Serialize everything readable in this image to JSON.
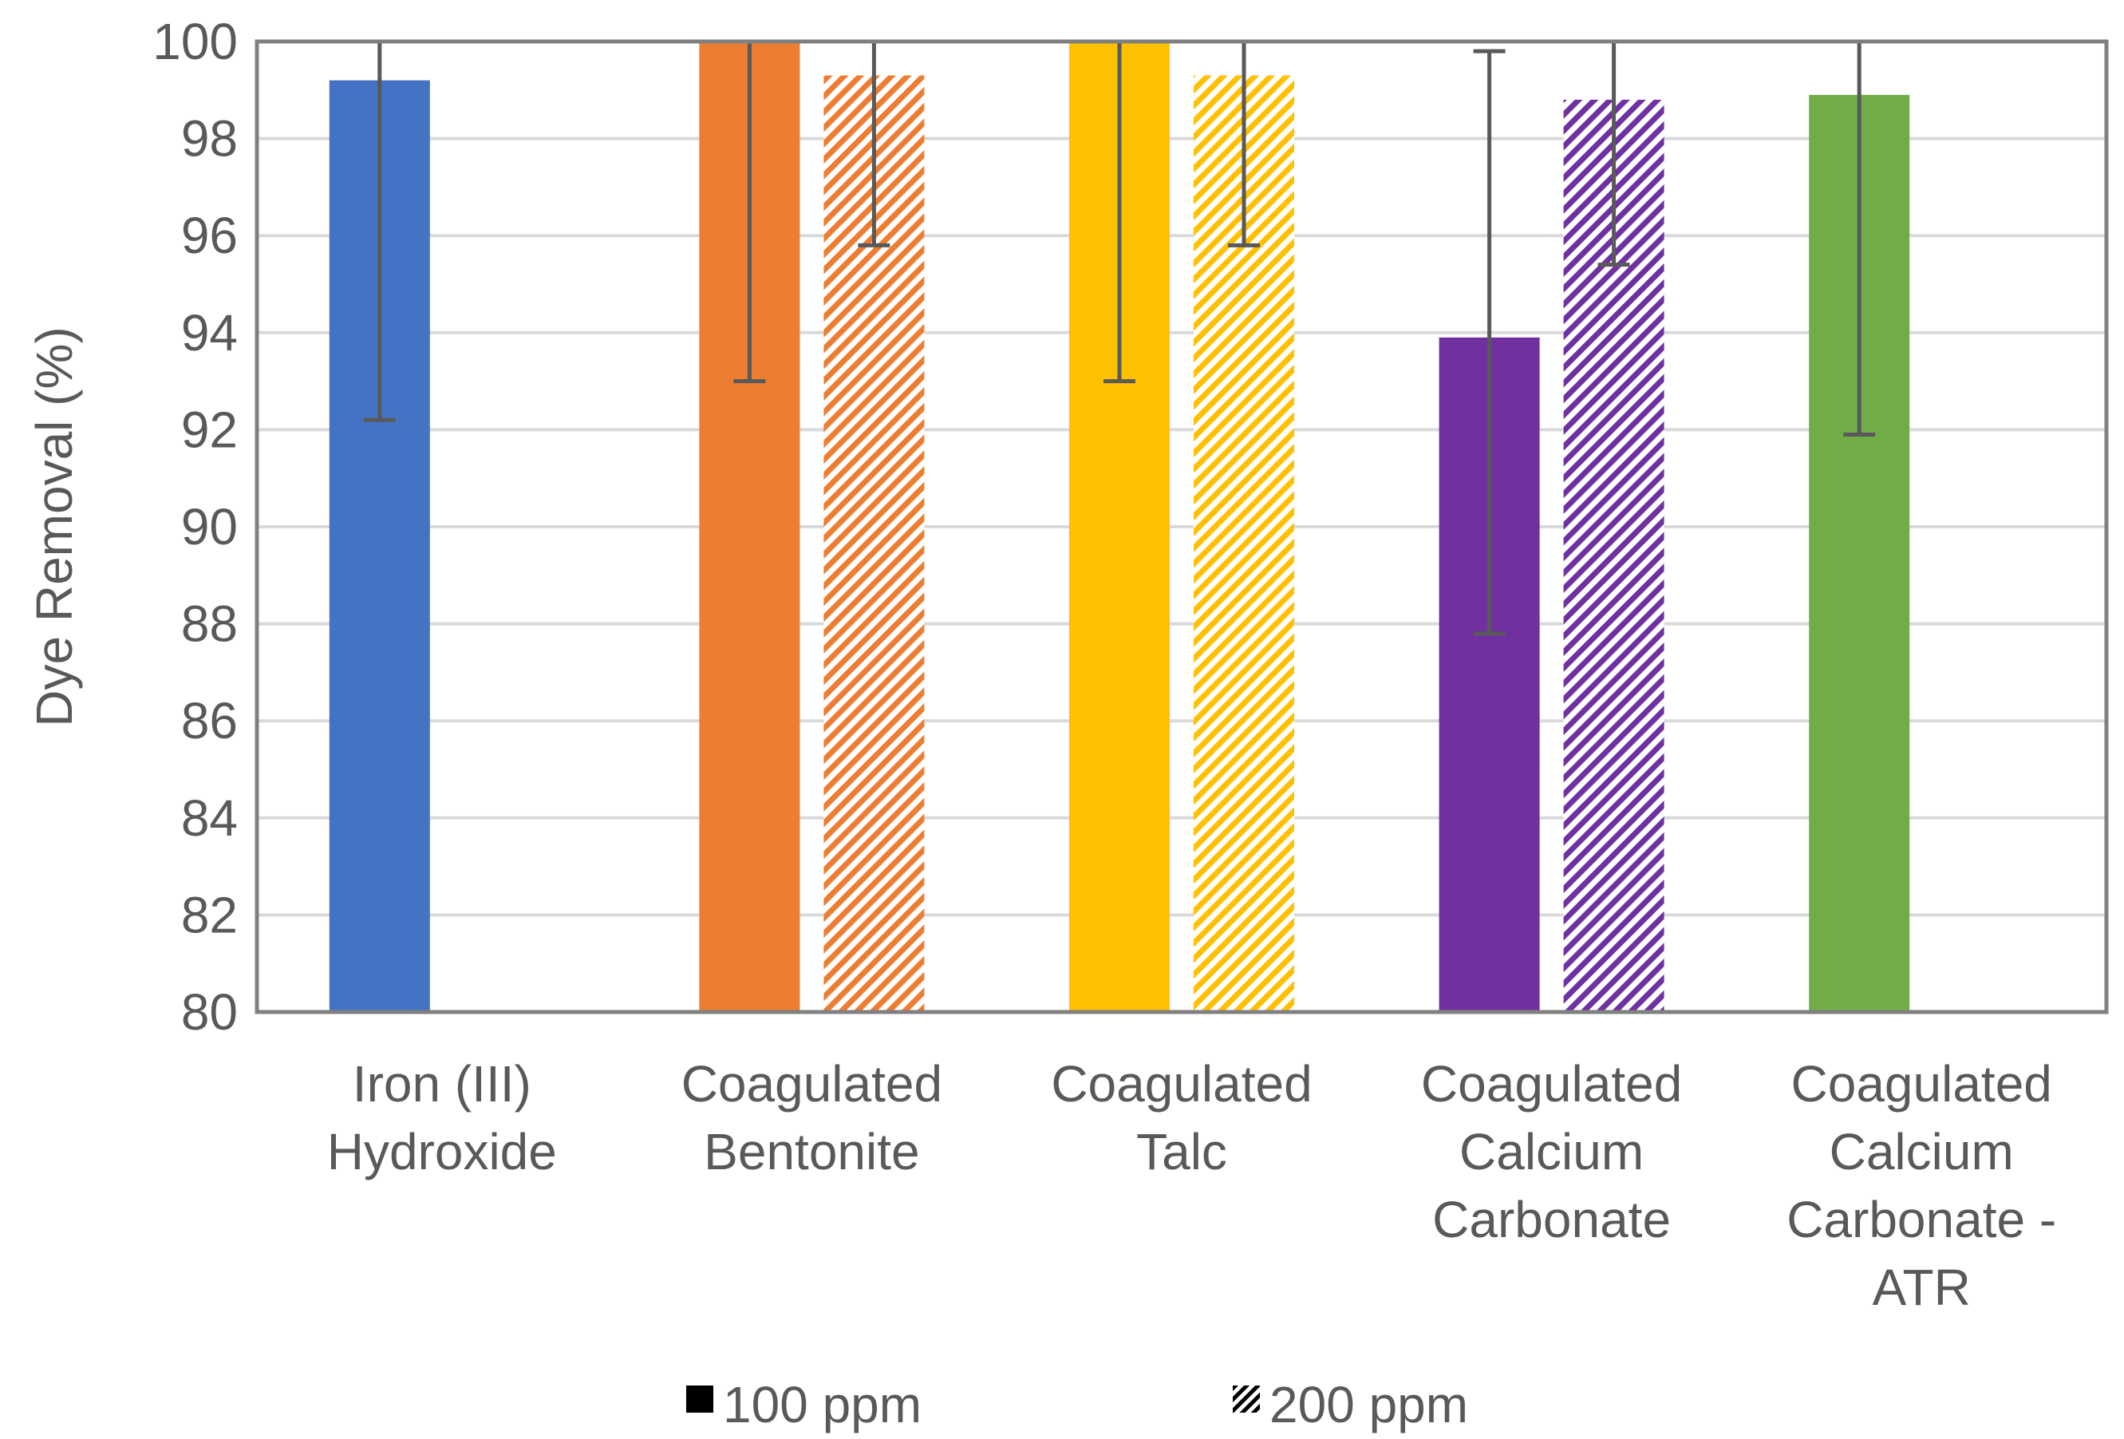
{
  "chart_data": {
    "type": "bar",
    "ylabel": "Dye Removal (%)",
    "ylim": [
      80,
      100
    ],
    "yticks": [
      80,
      82,
      84,
      86,
      88,
      90,
      92,
      94,
      96,
      98,
      100
    ],
    "grid": true,
    "legend_position": "bottom",
    "categories": [
      [
        "Iron (III)",
        "Hydroxide"
      ],
      [
        "Coagulated",
        "Bentonite"
      ],
      [
        "Coagulated",
        "Talc"
      ],
      [
        "Coagulated",
        "Calcium",
        "Carbonate"
      ],
      [
        "Coagulated",
        "Calcium",
        "Carbonate -",
        "ATR"
      ]
    ],
    "category_colors": [
      "#4472C4",
      "#ED7D31",
      "#FFC000",
      "#7030A0",
      "#70AD47"
    ],
    "series": [
      {
        "name": "100 ppm",
        "fill": "solid",
        "values": [
          99.2,
          100.0,
          100.0,
          93.9,
          98.9
        ],
        "error_plus": [
          7.0,
          7.0,
          7.0,
          5.9,
          7.0
        ],
        "error_minus": [
          7.0,
          7.0,
          7.0,
          6.1,
          7.0
        ]
      },
      {
        "name": "200 ppm",
        "fill": "diagonal-stripes",
        "values": [
          null,
          99.3,
          99.3,
          98.8,
          null
        ],
        "error_plus": [
          null,
          3.5,
          3.5,
          3.4,
          null
        ],
        "error_minus": [
          null,
          3.5,
          3.5,
          3.4,
          null
        ]
      }
    ]
  }
}
